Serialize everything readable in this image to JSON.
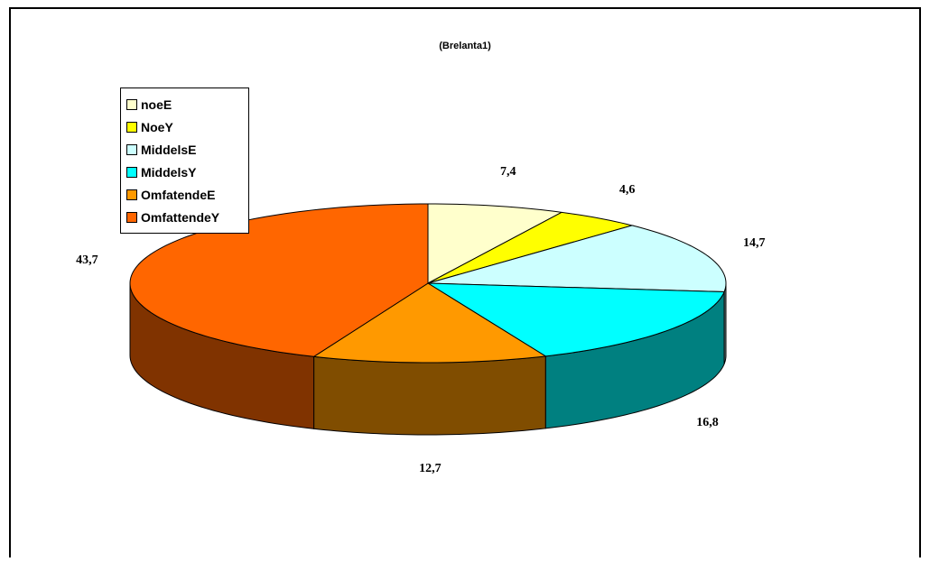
{
  "chart_data": {
    "type": "pie",
    "title": "(Brelanta1)",
    "categories": [
      "noeE",
      "NoeY",
      "MiddelsE",
      "MiddelsY",
      "OmfatendeE",
      "OmfattendeY"
    ],
    "values": [
      7.4,
      4.6,
      14.7,
      16.8,
      12.7,
      43.7
    ],
    "value_labels": [
      "7,4",
      "4,6",
      "14,7",
      "16,8",
      "12,7",
      "43,7"
    ],
    "colors": [
      "#FFFFCC",
      "#FFFF00",
      "#CCFFFF",
      "#00FFFF",
      "#FF9900",
      "#FF6600"
    ],
    "side_colors": [
      "#808066",
      "#808000",
      "#668080",
      "#008080",
      "#804D00",
      "#803300"
    ],
    "legend_position": "top-left",
    "style": "3d"
  }
}
